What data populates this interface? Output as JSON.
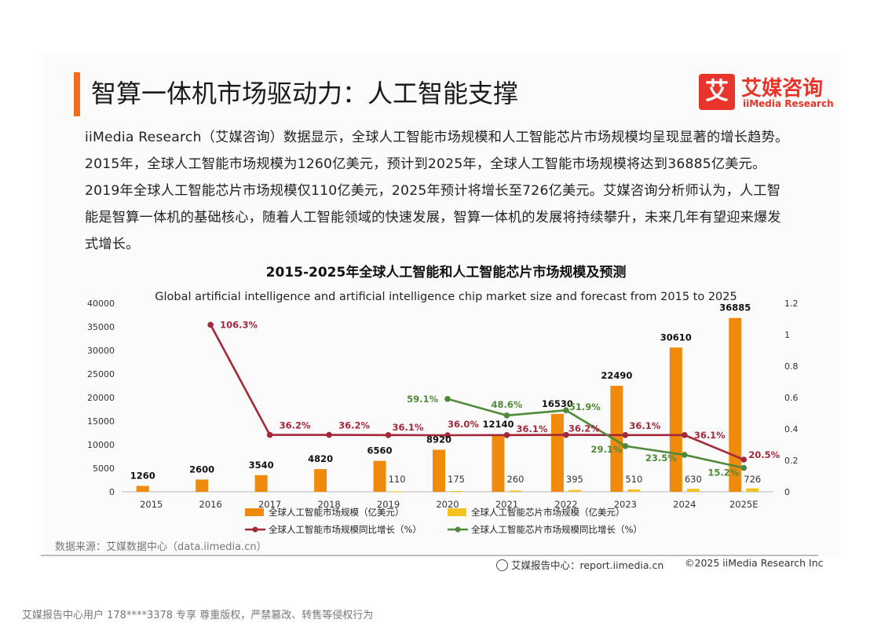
{
  "header": {
    "title": "智算一体机市场驱动力：人工智能支撑",
    "logo_cn": "艾媒咨询",
    "logo_en": "iiMedia Research",
    "logo_mark": "艾"
  },
  "paragraph": "iiMedia Research（艾媒咨询）数据显示，全球人工智能市场规模和人工智能芯片市场规模均呈现显著的增长趋势。2015年，全球人工智能市场规模为1260亿美元，预计到2025年，全球人工智能市场规模将达到36885亿美元。2019年全球人工智能芯片市场规模仅110亿美元，2025年预计将增长至726亿美元。艾媒咨询分析师认为，人工智能是智算一体机的基础核心，随着人工智能领域的快速发展，智算一体机的发展将持续攀升，未来几年有望迎来爆发式增长。",
  "chart_data": {
    "type": "bar",
    "title": "2015-2025年全球人工智能和人工智能芯片市场规模及预测",
    "subtitle": "Global artificial intelligence and artificial intelligence chip market size and forecast from 2015 to 2025",
    "categories": [
      "2015",
      "2016",
      "2017",
      "2018",
      "2019",
      "2020",
      "2021",
      "2022",
      "2023",
      "2024",
      "2025E"
    ],
    "ylim": [
      0,
      40000
    ],
    "y_ticks": [
      "0",
      "5000",
      "10000",
      "15000",
      "20000",
      "25000",
      "30000",
      "35000",
      "40000"
    ],
    "y2lim": [
      0,
      1.2
    ],
    "y2_ticks": [
      "0",
      "0.2",
      "0.4",
      "0.6",
      "0.8",
      "1",
      "1.2"
    ],
    "legend_position": "bottom",
    "series": [
      {
        "name": "全球人工智能市场规模（亿美元）",
        "kind": "bar",
        "axis": "left",
        "color": "#f08a0c",
        "values": [
          1260,
          2600,
          3540,
          4820,
          6560,
          8920,
          12140,
          16530,
          22490,
          30610,
          36885
        ]
      },
      {
        "name": "全球人工智能芯片市场规模（亿美元）",
        "kind": "bar",
        "axis": "left",
        "color": "#f7c21d",
        "values": [
          null,
          null,
          null,
          null,
          110,
          175,
          260,
          395,
          510,
          630,
          726
        ]
      },
      {
        "name": "全球人工智能市场规模同比增长（%）",
        "kind": "line",
        "axis": "right",
        "color": "#a3283a",
        "values": [
          null,
          1.063,
          0.362,
          0.362,
          0.361,
          0.36,
          0.361,
          0.362,
          0.361,
          0.361,
          0.205
        ],
        "labels": [
          null,
          "106.3%",
          "36.2%",
          "36.2%",
          "36.1%",
          "36.0%",
          "36.1%",
          "36.2%",
          "36.1%",
          "36.1%",
          "20.5%"
        ]
      },
      {
        "name": "全球人工智能芯片市场规模同比增长（%）",
        "kind": "line",
        "axis": "right",
        "color": "#4f8a3a",
        "values": [
          null,
          null,
          null,
          null,
          null,
          0.591,
          0.486,
          0.519,
          0.291,
          0.235,
          0.152
        ],
        "labels": [
          null,
          null,
          null,
          null,
          null,
          "59.1%",
          "48.6%",
          "51.9%",
          "29.1%",
          "23.5%",
          "15.2%"
        ]
      }
    ]
  },
  "source": "数据来源：艾媒数据中心（data.iimedia.cn）",
  "footer": {
    "report_center": "艾媒报告中心：report.iimedia.cn",
    "copyright": "©2025  iiMedia Research  Inc"
  },
  "watermark": "艾媒报告中心用户 178****3378 专享 尊重版权，严禁篡改、转售等侵权行为"
}
